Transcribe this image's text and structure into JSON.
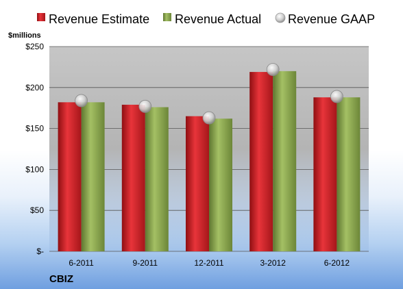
{
  "chart_data": {
    "type": "bar",
    "categories": [
      "6-2011",
      "9-2011",
      "12-2011",
      "3-2012",
      "6-2012"
    ],
    "series": [
      {
        "name": "Revenue Estimate",
        "kind": "bar",
        "color": "#d9262b",
        "values": [
          182,
          179,
          165,
          219,
          188
        ]
      },
      {
        "name": "Revenue Actual",
        "kind": "bar",
        "color": "#8faa55",
        "values": [
          182,
          176,
          162,
          220,
          188
        ]
      },
      {
        "name": "Revenue GAAP",
        "kind": "marker",
        "color": "#c9c9c9",
        "values": [
          184,
          177,
          163,
          222,
          189
        ]
      }
    ],
    "ylabel": "$millions",
    "ylim": [
      0,
      250
    ],
    "yticks": [
      0,
      50,
      100,
      150,
      200,
      250
    ],
    "ytick_labels": [
      "$-",
      "$50",
      "$100",
      "$150",
      "$200",
      "$250"
    ],
    "grid": true,
    "legend_position": "top",
    "company": "CBIZ"
  }
}
